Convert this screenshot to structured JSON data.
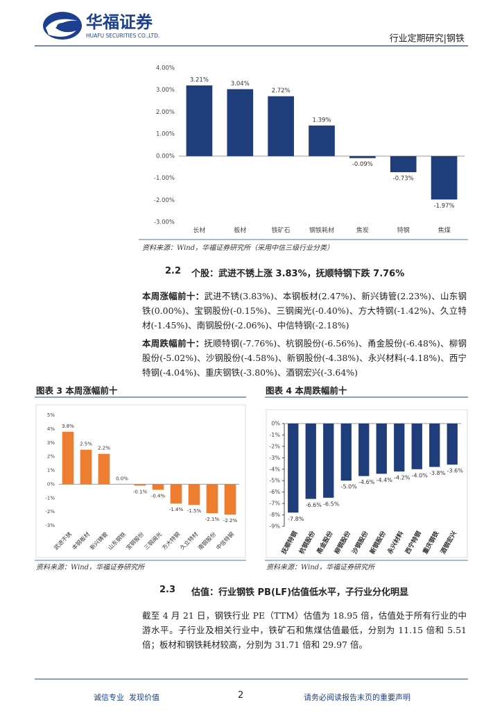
{
  "header": {
    "logo_name": "华福证券",
    "logo_subtitle": "HUAFU SECURITIES CO.,LTD.",
    "report_type": "行业定期研究|钢铁"
  },
  "chart_data": [
    {
      "type": "bar",
      "categories": [
        "长材",
        "板材",
        "铁矿石",
        "钢铁耗材",
        "焦炭",
        "特钢",
        "焦煤"
      ],
      "values": [
        3.21,
        3.04,
        2.72,
        1.39,
        -0.09,
        -0.73,
        -1.97
      ],
      "value_labels": [
        "3.21%",
        "3.04%",
        "2.72%",
        "1.39%",
        "-0.09%",
        "-0.73%",
        "-1.97%"
      ],
      "color": "#1f3d7a",
      "ylim": [
        -3,
        4
      ],
      "yticks": [
        {
          "value": 4,
          "label": "4.00%"
        },
        {
          "value": 3,
          "label": "3.00%"
        },
        {
          "value": 2,
          "label": "2.00%"
        },
        {
          "value": 1,
          "label": "1.00%"
        },
        {
          "value": 0,
          "label": "0.00%"
        },
        {
          "value": -1,
          "label": "-1.00%"
        },
        {
          "value": -2,
          "label": "-2.00%"
        },
        {
          "value": -3,
          "label": "-3.00%"
        }
      ],
      "source": "资料来源：Wind，华福证券研究所（采用中信三级行业分类）"
    },
    {
      "type": "bar",
      "title": "图表 3 本周涨幅前十",
      "categories": [
        "武进不锈",
        "本钢板材",
        "新兴铸管",
        "山东钢铁",
        "宝钢股份",
        "三钢闽光",
        "方大特钢",
        "久立特材",
        "南钢股份",
        "中信特钢"
      ],
      "values": [
        3.8,
        2.5,
        2.2,
        0.0,
        -0.1,
        -0.4,
        -1.4,
        -1.5,
        -2.1,
        -2.2
      ],
      "value_labels": [
        "3.8%",
        "2.5%",
        "2.2%",
        "0.0%",
        "-0.1%",
        "-0.4%",
        "-1.4%",
        "-1.5%",
        "-2.1%",
        "-2.2%"
      ],
      "color": "#ed7d31",
      "ylim": [
        -3,
        5
      ],
      "yticks": [
        {
          "value": 5,
          "label": "5%"
        },
        {
          "value": 4,
          "label": "4%"
        },
        {
          "value": 3,
          "label": "3%"
        },
        {
          "value": 2,
          "label": "2%"
        },
        {
          "value": 1,
          "label": "1%"
        },
        {
          "value": 0,
          "label": "0%"
        },
        {
          "value": -1,
          "label": "-1%"
        },
        {
          "value": -2,
          "label": "-2%"
        },
        {
          "value": -3,
          "label": "-3%"
        }
      ],
      "source": "资料来源：Wind，华福证券研究所"
    },
    {
      "type": "bar",
      "title": "图表 4 本周跌幅前十",
      "categories": [
        "抚顺特钢",
        "杭钢股份",
        "甬金股份",
        "柳钢股份",
        "沙钢股份",
        "新钢股份",
        "永兴材料",
        "西宁特钢",
        "重庆钢铁",
        "酒钢宏兴"
      ],
      "values": [
        -7.8,
        -6.6,
        -6.5,
        -5.0,
        -4.6,
        -4.4,
        -4.2,
        -4.0,
        -3.8,
        -3.6
      ],
      "value_labels": [
        "-7.8%",
        "-6.6%",
        "-6.5%",
        "-5.0%",
        "-4.6%",
        "-4.4%",
        "-4.2%",
        "-4.0%",
        "-3.8%",
        "-3.6%"
      ],
      "color": "#1f3d7a",
      "ylim": [
        -9,
        0
      ],
      "yticks": [
        {
          "value": 0,
          "label": "0%"
        },
        {
          "value": -1,
          "label": "-1%"
        },
        {
          "value": -2,
          "label": "-2%"
        },
        {
          "value": -3,
          "label": "-3%"
        },
        {
          "value": -4,
          "label": "-4%"
        },
        {
          "value": -5,
          "label": "-5%"
        },
        {
          "value": -6,
          "label": "-6%"
        },
        {
          "value": -7,
          "label": "-7%"
        },
        {
          "value": -8,
          "label": "-8%"
        },
        {
          "value": -9,
          "label": "-9%"
        }
      ],
      "source": "资料来源：Wind，华福证券研究所"
    }
  ],
  "section_2_2": {
    "number": "2.2",
    "title": "个股：武进不锈上涨 3.83%，抚顺特钢下跌 7.76%"
  },
  "paragraphs": [
    {
      "lead": "本周涨幅前十：",
      "text": "武进不锈(3.83%)、本钢板材(2.47%)、新兴铸管(2.23%)、山东钢铁(0.00%)、宝钢股份(-0.15%)、三钢闽光(-0.40%)、方大特钢(-1.42%)、久立特材(-1.45%)、南钢股份(-2.06%)、中信特钢(-2.18%)"
    },
    {
      "lead": "本周跌幅前十：",
      "text": "抚顺特钢(-7.76%)、杭钢股份(-6.56%)、甬金股份(-6.48%)、柳钢股份(-5.02%)、沙钢股份(-4.58%)、新钢股份(-4.38%)、永兴材料(-4.18%)、西宁特钢(-4.04%)、重庆钢铁(-3.80%)、酒钢宏兴(-3.64%)"
    }
  ],
  "section_2_3": {
    "number": "2.3",
    "title": "估值：行业钢铁 PB(LF)估值低水平，子行业分化明显"
  },
  "paragraph_2_3": "截至 4 月 21 日，钢铁行业 PE（TTM）估值为 18.95 倍，估值处于所有行业的中游水平。子行业及相关行业中，铁矿石和焦煤估值最低，分别为 11.15 倍和 5.51 倍；板材和钢铁耗材较高，分别为 31.71 倍和 29.97 倍。",
  "footer": {
    "left": "诚信专业  发现价值",
    "page": "2",
    "right": "请务必阅读报告末页的重要声明"
  }
}
